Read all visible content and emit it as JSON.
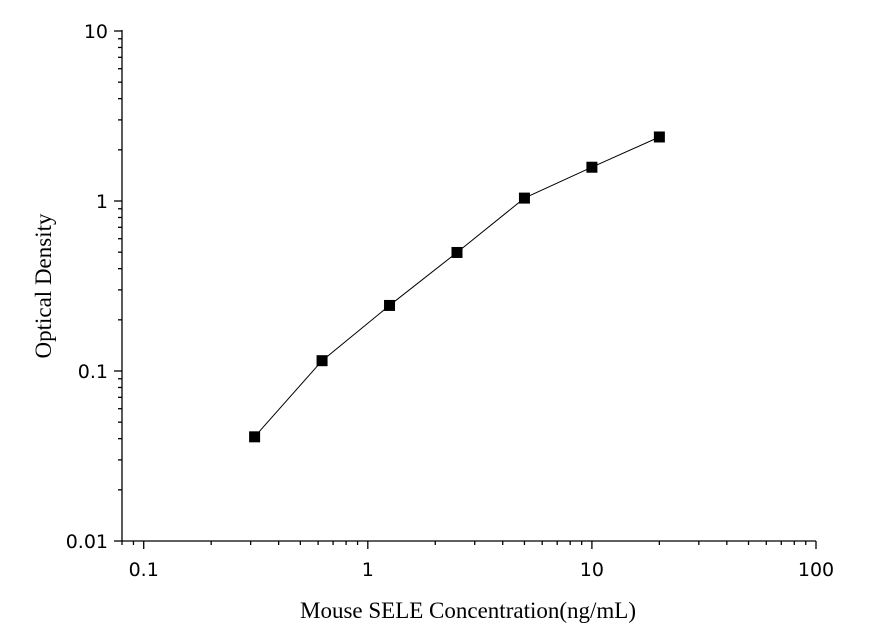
{
  "chart_data": {
    "type": "scatter",
    "title": "",
    "xlabel": "Mouse SELE  Concentration(ng/mL)",
    "ylabel": "Optical Density",
    "xscale": "log",
    "yscale": "log",
    "xlim": [
      0.08,
      100
    ],
    "ylim": [
      0.01,
      10
    ],
    "x_ticks": [
      "0.1",
      "1",
      "10",
      "100"
    ],
    "y_ticks": [
      "0.01",
      "0.1",
      "1",
      "10"
    ],
    "grid": false,
    "legend": "none",
    "fit_line": true,
    "marker": "square",
    "color": "#000000",
    "series": [
      {
        "x": [
          0.3125,
          0.625,
          1.25,
          2.5,
          5,
          10,
          20
        ],
        "y": [
          0.041,
          0.115,
          0.243,
          0.498,
          1.04,
          1.58,
          2.38
        ]
      }
    ]
  }
}
